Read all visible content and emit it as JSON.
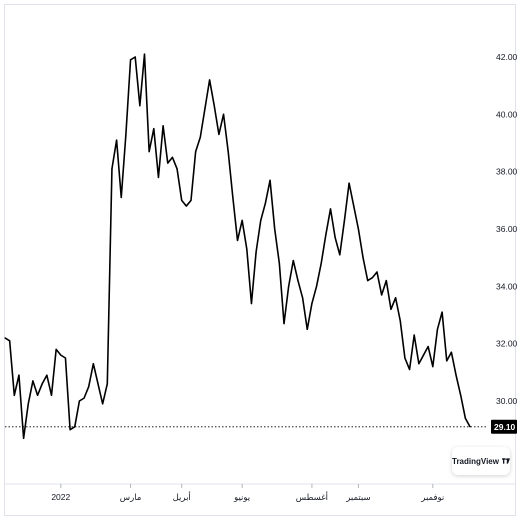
{
  "chart_data": {
    "type": "line",
    "title": "",
    "xlabel": "",
    "ylabel": "",
    "ylim": [
      28.0,
      43.0
    ],
    "y_ticks": [
      30,
      32,
      34,
      36,
      38,
      40,
      42
    ],
    "y_tick_labels": [
      "30.00",
      "32.00",
      "34.00",
      "36.00",
      "38.00",
      "40.00",
      "42.00"
    ],
    "x_ticks": [
      {
        "label": "2022",
        "index": 12
      },
      {
        "label": "مارس",
        "index": 27
      },
      {
        "label": "أبريل",
        "index": 38
      },
      {
        "label": "يونيو",
        "index": 51
      },
      {
        "label": "أغسطس",
        "index": 66
      },
      {
        "label": "سبتمبر",
        "index": 76
      },
      {
        "label": "نوفمبر",
        "index": 92
      }
    ],
    "grid": false,
    "line_color": "#000000",
    "last_value": 29.1,
    "last_value_label": "29.10",
    "badge_color": "#000000",
    "series": [
      {
        "values": [
          32.2,
          32.1,
          30.2,
          30.9,
          28.7,
          29.9,
          30.7,
          30.2,
          30.6,
          30.9,
          30.2,
          31.8,
          31.6,
          31.5,
          29.0,
          29.1,
          30.0,
          30.1,
          30.5,
          31.3,
          30.6,
          29.9,
          30.6,
          38.1,
          39.1,
          37.1,
          39.3,
          41.9,
          42.0,
          40.3,
          42.1,
          38.7,
          39.5,
          37.8,
          39.6,
          38.3,
          38.5,
          38.1,
          37.0,
          36.8,
          37.0,
          38.7,
          39.2,
          40.2,
          41.2,
          40.3,
          39.3,
          40.0,
          38.7,
          37.1,
          35.6,
          36.3,
          35.3,
          33.4,
          35.2,
          36.3,
          36.9,
          37.7,
          36.0,
          34.8,
          32.7,
          34.0,
          34.9,
          34.2,
          33.6,
          32.5,
          33.4,
          34.0,
          34.8,
          35.8,
          36.7,
          35.7,
          35.1,
          36.3,
          37.6,
          36.8,
          36.0,
          35.0,
          34.2,
          34.3,
          34.5,
          33.7,
          34.2,
          33.2,
          33.6,
          32.8,
          31.5,
          31.1,
          32.3,
          31.3,
          31.6,
          31.9,
          31.2,
          32.5,
          33.1,
          31.4,
          31.7,
          30.9,
          30.2,
          29.4,
          29.1
        ]
      }
    ]
  },
  "watermark": {
    "text": "TradingView"
  }
}
